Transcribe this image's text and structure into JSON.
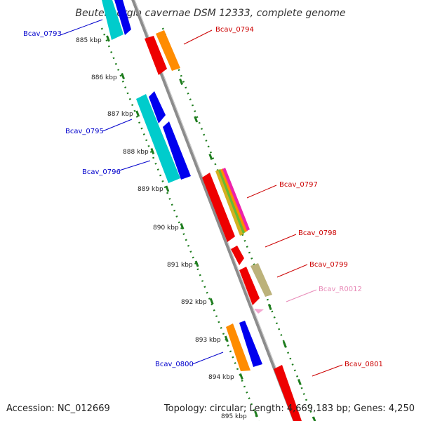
{
  "title": "Beutenbergia cavernae DSM 12333, complete genome",
  "accession": "Accession: NC_012669",
  "summary": "Topology: circular; Length: 4,669,183 bp; Genes: 4,250",
  "colors": {
    "background": "#ffffff",
    "backbone": "#8c8c8c",
    "tick": "#1e7d1e",
    "label_forward": "#0000cc",
    "label_reverse": "#cc0000",
    "label_rna": "#e88ab8"
  },
  "kbp_ticks": [
    "885 kbp",
    "886 kbp",
    "887 kbp",
    "888 kbp",
    "889 kbp",
    "890 kbp",
    "891 kbp",
    "892 kbp",
    "893 kbp",
    "894 kbp",
    "895 kbp"
  ],
  "genes": [
    {
      "id": "Bcav_0793",
      "label": "Bcav_0793",
      "strand": "left"
    },
    {
      "id": "Bcav_0794",
      "label": "Bcav_0794",
      "strand": "right"
    },
    {
      "id": "Bcav_0795",
      "label": "Bcav_0795",
      "strand": "left"
    },
    {
      "id": "Bcav_0796",
      "label": "Bcav_0796",
      "strand": "left"
    },
    {
      "id": "Bcav_0797",
      "label": "Bcav_0797",
      "strand": "right"
    },
    {
      "id": "Bcav_0798",
      "label": "Bcav_0798",
      "strand": "right"
    },
    {
      "id": "Bcav_0799",
      "label": "Bcav_0799",
      "strand": "right"
    },
    {
      "id": "Bcav_R0012",
      "label": "Bcav_R0012",
      "strand": "right"
    },
    {
      "id": "Bcav_0800",
      "label": "Bcav_0800",
      "strand": "left"
    },
    {
      "id": "Bcav_0801",
      "label": "Bcav_0801",
      "strand": "right"
    }
  ]
}
